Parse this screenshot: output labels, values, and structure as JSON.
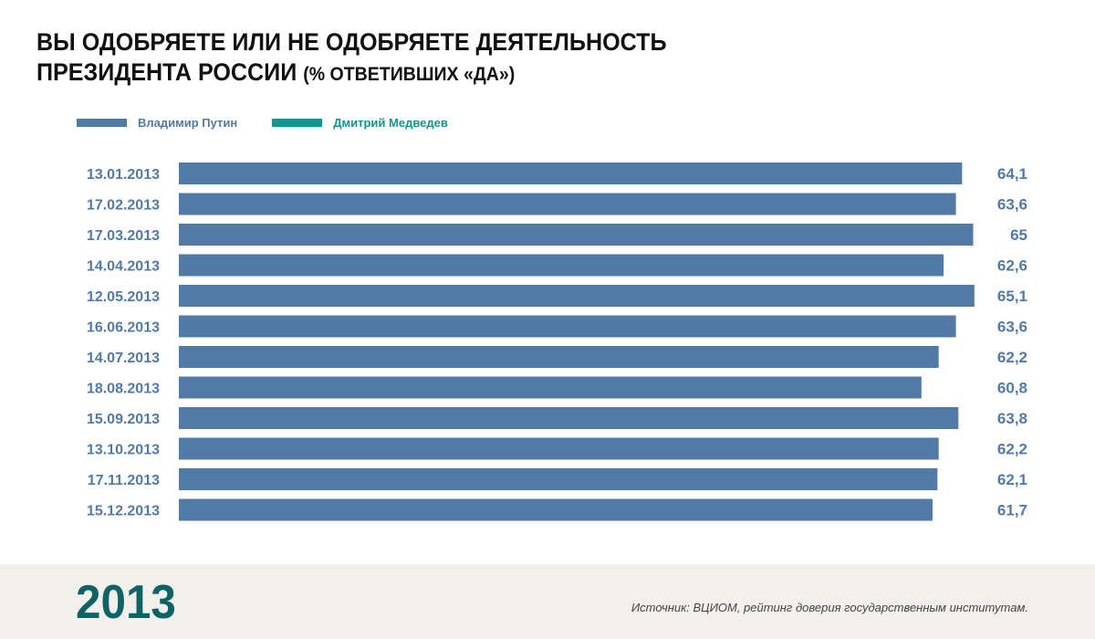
{
  "title": {
    "line1": "ВЫ ОДОБРЯЕТЕ ИЛИ НЕ ОДОБРЯЕТЕ ДЕЯТЕЛЬНОСТЬ",
    "line2_main": "ПРЕЗИДЕНТА РОССИИ",
    "line2_sub": "(% ОТВЕТИВШИХ «ДА»)"
  },
  "colors": {
    "putin": "#527aa6",
    "medvedev": "#12958e",
    "label": "#527aa6",
    "year": "#0f6266"
  },
  "footer": {
    "year": "2013",
    "source": "Источник: ВЦИОМ, рейтинг доверия государственным институтам."
  },
  "chart_data": {
    "type": "bar",
    "orientation": "horizontal",
    "title": "ВЫ ОДОБРЯЕТЕ ИЛИ НЕ ОДОБРЯЕТЕ ДЕЯТЕЛЬНОСТЬ ПРЕЗИДЕНТА РОССИИ (% ОТВЕТИВШИХ «ДА»)",
    "legend": [
      {
        "name": "Владимир Путин",
        "color": "#527aa6"
      },
      {
        "name": "Дмитрий Медведев",
        "color": "#12958e"
      }
    ],
    "legend_position": "top-left",
    "categories": [
      "13.01.2013",
      "17.02.2013",
      "17.03.2013",
      "14.04.2013",
      "12.05.2013",
      "16.06.2013",
      "14.07.2013",
      "18.08.2013",
      "15.09.2013",
      "13.10.2013",
      "17.11.2013",
      "15.12.2013"
    ],
    "series": [
      {
        "name": "Владимир Путин",
        "values": [
          64.1,
          63.6,
          65,
          62.6,
          65.1,
          63.6,
          62.2,
          60.8,
          63.8,
          62.2,
          62.1,
          61.7
        ],
        "labels": [
          "64,1",
          "63,6",
          "65",
          "62,6",
          "65,1",
          "63,6",
          "62,2",
          "60,8",
          "63,8",
          "62,2",
          "62,1",
          "61,7"
        ]
      }
    ],
    "xlim": [
      0,
      66
    ],
    "grid": false,
    "xlabel": "",
    "ylabel": ""
  }
}
